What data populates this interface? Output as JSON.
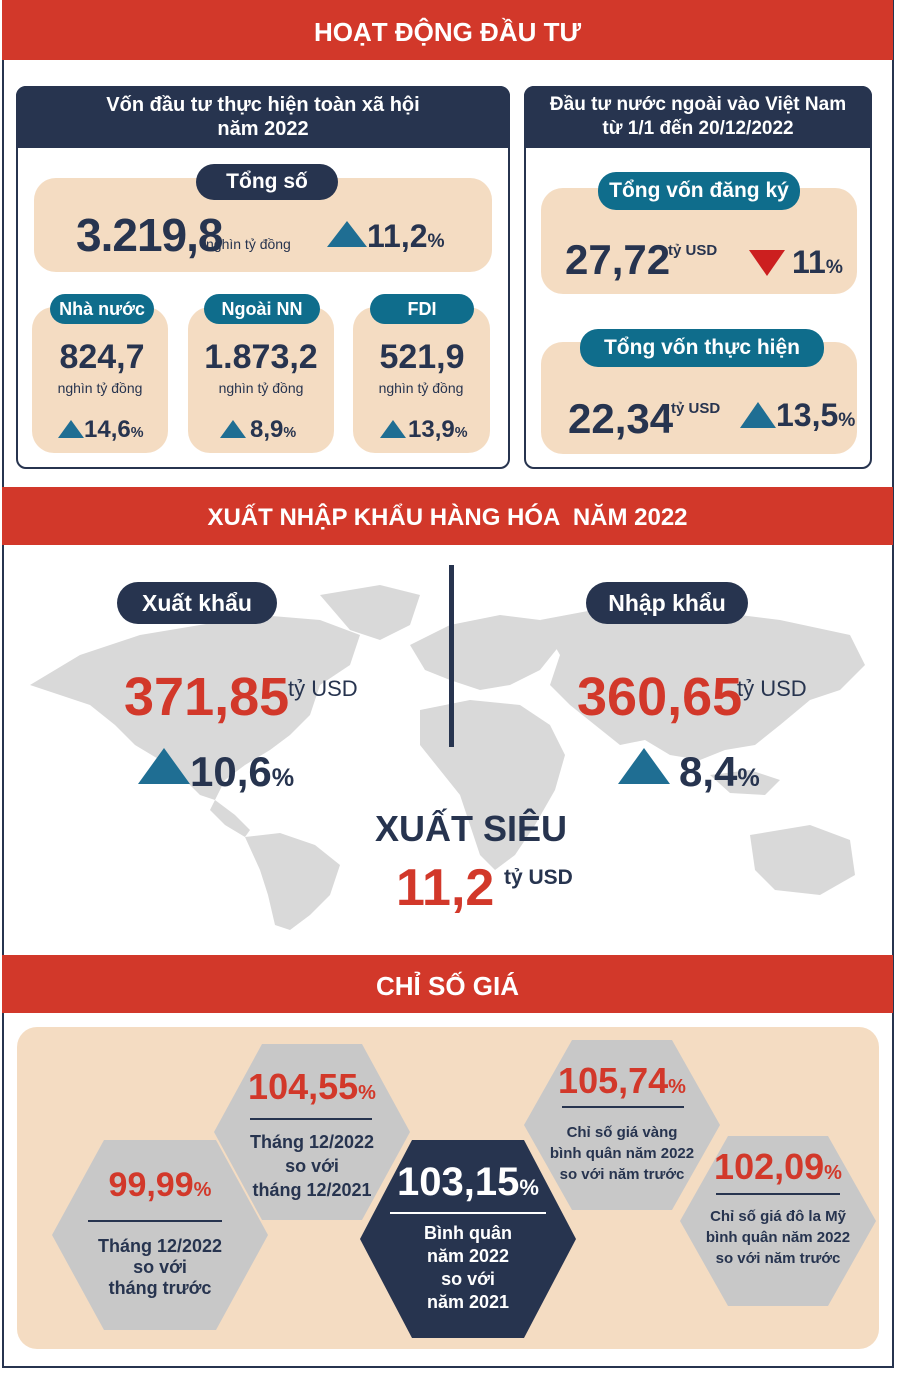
{
  "investment": {
    "banner": "HOẠT ĐỘNG ĐẦU TƯ",
    "social": {
      "title_line1": "Vốn đầu tư thực hiện toàn xã hội",
      "title_line2": "năm 2022",
      "total_label": "Tổng số",
      "total_value": "3.219,8",
      "total_unit": "nghìn tỷ đồng",
      "total_change": "11,2",
      "items": [
        {
          "label": "Nhà nước",
          "value": "824,7",
          "unit": "nghìn tỷ đồng",
          "change": "14,6"
        },
        {
          "label": "Ngoài NN",
          "value": "1.873,2",
          "unit": "nghìn tỷ đồng",
          "change": "8,9"
        },
        {
          "label": "FDI",
          "value": "521,9",
          "unit": "nghìn tỷ đồng",
          "change": "13,9"
        }
      ]
    },
    "fdi": {
      "title_line1": "Đầu tư nước ngoài vào Việt Nam",
      "title_line2": "từ 1/1 đến 20/12/2022",
      "registered_label": "Tổng vốn đăng ký",
      "registered_value": "27,72",
      "registered_unit": "tỷ USD",
      "registered_change": "11",
      "implemented_label": "Tổng vốn thực hiện",
      "implemented_value": "22,34",
      "implemented_unit": "tỷ USD",
      "implemented_change": "13,5"
    }
  },
  "trade": {
    "banner": "XUẤT NHẬP KHẨU HÀNG HÓA  NĂM 2022",
    "export_label": "Xuất khẩu",
    "export_value": "371,85",
    "export_unit": "tỷ USD",
    "export_change": "10,6",
    "import_label": "Nhập khẩu",
    "import_value": "360,65",
    "import_unit": "tỷ USD",
    "import_change": "8,4",
    "surplus_label": "XUẤT SIÊU",
    "surplus_value": "11,2",
    "surplus_unit": "tỷ USD"
  },
  "prices": {
    "banner": "CHỈ SỐ GIÁ",
    "items": [
      {
        "value": "99,99",
        "l1": "Tháng 12/2022",
        "l2": "so với",
        "l3": "tháng trước"
      },
      {
        "value": "104,55",
        "l1": "Tháng 12/2022",
        "l2": "so với",
        "l3": "tháng 12/2021"
      },
      {
        "value": "103,15",
        "l1": "Bình quân",
        "l2": "năm 2022",
        "l3": "so với",
        "l4": "năm 2021"
      },
      {
        "value": "105,74",
        "l1": "Chỉ số giá vàng",
        "l2": "bình quân năm 2022",
        "l3": "so với năm trước"
      },
      {
        "value": "102,09",
        "l1": "Chỉ số giá đô la Mỹ",
        "l2": "bình quân năm 2022",
        "l3": "so với năm trước"
      }
    ],
    "percent_sign": "%"
  },
  "colors": {
    "navy": "#27344f",
    "red": "#d2382a",
    "teal": "#0f6d8c",
    "beige": "#f4dcc2",
    "arrow_up": "#1f6e93",
    "arrow_down": "#cc1f1f",
    "hex_gray": "#c8c8c8"
  },
  "icons": [
    "arrow-up-icon",
    "arrow-down-icon",
    "world-map-icon"
  ]
}
